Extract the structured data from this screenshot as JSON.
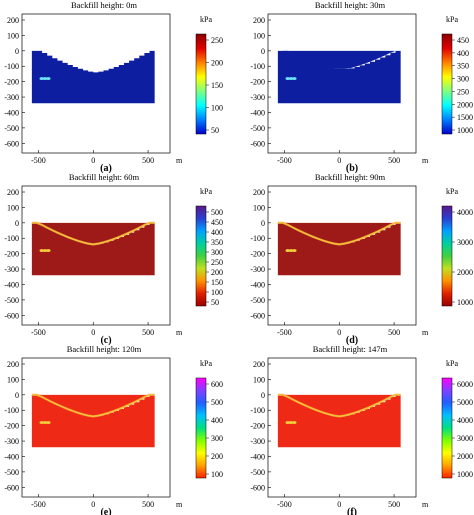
{
  "panels": [
    {
      "title": "Backfill height: 0m",
      "caption": "(a)",
      "colorbar": {
        "unit": "kPa",
        "ticks": [
          "250",
          "200",
          "150",
          "100",
          "50"
        ],
        "style": "dark-red-to-blue"
      },
      "field": {
        "theme": "blue",
        "hot_spots": true,
        "arch_band": false,
        "backfill": false
      }
    },
    {
      "title": "Backfill height: 30m",
      "caption": "(b)",
      "colorbar": {
        "unit": "kPa",
        "ticks": [
          "450",
          "400",
          "350",
          "300",
          "250",
          "2000",
          "1500",
          "1000"
        ],
        "style": "dark-red-to-blue"
      },
      "field": {
        "theme": "blue",
        "hot_spots": true,
        "arch_band": false,
        "backfill": true
      }
    },
    {
      "title": "Backfill height: 60m",
      "caption": "(c)",
      "colorbar": {
        "unit": "kPa",
        "ticks": [
          "500",
          "450",
          "400",
          "350",
          "300",
          "250",
          "200",
          "150",
          "100",
          "50"
        ],
        "style": "purple-to-dark-red"
      },
      "field": {
        "theme": "red",
        "hot_spots": true,
        "arch_band": true,
        "backfill": true
      }
    },
    {
      "title": "Backfill height: 90m",
      "caption": "(d)",
      "colorbar": {
        "unit": "kPa",
        "ticks": [
          "4000",
          "3000",
          "2000",
          "1000"
        ],
        "style": "purple-to-dark-red"
      },
      "field": {
        "theme": "red",
        "hot_spots": true,
        "arch_band": true,
        "backfill": true
      }
    },
    {
      "title": "Backfill height: 120m",
      "caption": "(e)",
      "colorbar": {
        "unit": "kPa",
        "ticks": [
          "600",
          "500",
          "400",
          "300",
          "200",
          "100"
        ],
        "style": "magenta-to-red"
      },
      "field": {
        "theme": "bright",
        "hot_spots": true,
        "arch_band": true,
        "backfill": true
      }
    },
    {
      "title": "Backfill height: 147m",
      "caption": "(f)",
      "colorbar": {
        "unit": "kPa",
        "ticks": [
          "6000",
          "5000",
          "4000",
          "3000",
          "2000",
          "1000"
        ],
        "style": "magenta-to-red"
      },
      "field": {
        "theme": "bright",
        "hot_spots": true,
        "arch_band": true,
        "backfill": true
      }
    }
  ],
  "axes": {
    "y_ticks": [
      "200",
      "100",
      "0",
      "-100",
      "-200",
      "-300",
      "-400",
      "-500",
      "-600"
    ],
    "x_ticks": [
      "-500",
      "0",
      "500"
    ],
    "x_unit": "m"
  },
  "colors": {
    "blue_fill": "#0d1fa0",
    "red_fill": "#9e1a18",
    "bright_fill": "#ee2a16",
    "band_yellow": "#f2d23a",
    "band_orange": "#f7a23a",
    "spot_cyan": "#6ee6ff"
  }
}
